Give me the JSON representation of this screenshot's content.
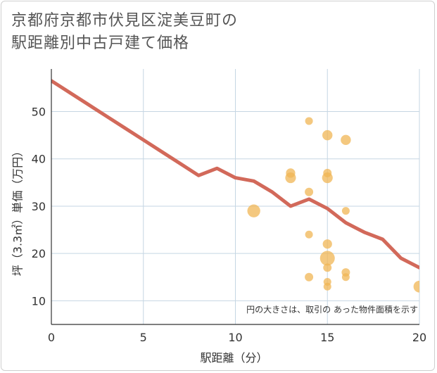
{
  "chart_data": {
    "type": "scatter",
    "title_line1": "京都府京都市伏見区淀美豆町の",
    "title_line2": "駅距離別中古戸建て価格",
    "xlabel": "駅距離（分）",
    "ylabel": "坪（3.3㎡）単価（万円）",
    "xlim": [
      0,
      20
    ],
    "ylim": [
      5,
      59
    ],
    "xticks": [
      0,
      5,
      10,
      15,
      20
    ],
    "yticks": [
      10,
      20,
      30,
      40,
      50
    ],
    "grid": true,
    "annotation": "円の大きさは、取引の あった物件面積を示す",
    "trend_line": {
      "name": "trend",
      "x": [
        0,
        1,
        2,
        3,
        4,
        5,
        6,
        7,
        8,
        9,
        10,
        11,
        12,
        13,
        14,
        15,
        16,
        17,
        18,
        19,
        20
      ],
      "y": [
        56.5,
        54,
        51.5,
        49,
        46.5,
        44,
        41.5,
        39,
        36.5,
        38,
        36,
        35.3,
        33,
        30,
        31.5,
        29.5,
        26.5,
        24.5,
        23,
        19,
        17
      ]
    },
    "points": [
      {
        "x": 11,
        "y": 29,
        "size": 3
      },
      {
        "x": 13,
        "y": 37,
        "size": 1.5
      },
      {
        "x": 13,
        "y": 36,
        "size": 2
      },
      {
        "x": 14,
        "y": 48,
        "size": 1
      },
      {
        "x": 14,
        "y": 33,
        "size": 1.2
      },
      {
        "x": 14,
        "y": 24,
        "size": 1
      },
      {
        "x": 14,
        "y": 15,
        "size": 1.2
      },
      {
        "x": 15,
        "y": 45,
        "size": 1.8
      },
      {
        "x": 15,
        "y": 37,
        "size": 1.2
      },
      {
        "x": 15,
        "y": 36,
        "size": 2
      },
      {
        "x": 15,
        "y": 22,
        "size": 1.5
      },
      {
        "x": 15,
        "y": 19,
        "size": 4
      },
      {
        "x": 15,
        "y": 17,
        "size": 1.2
      },
      {
        "x": 15,
        "y": 14,
        "size": 1
      },
      {
        "x": 15,
        "y": 13,
        "size": 1
      },
      {
        "x": 16,
        "y": 44,
        "size": 1.8
      },
      {
        "x": 16,
        "y": 29,
        "size": 1
      },
      {
        "x": 16,
        "y": 16,
        "size": 1.2
      },
      {
        "x": 16,
        "y": 15,
        "size": 1
      },
      {
        "x": 20,
        "y": 13,
        "size": 2.5
      }
    ],
    "colors": {
      "bubble": "#f0b654",
      "trend": "#d2695a",
      "grid": "#c5d6e3",
      "axis": "#333333"
    }
  }
}
